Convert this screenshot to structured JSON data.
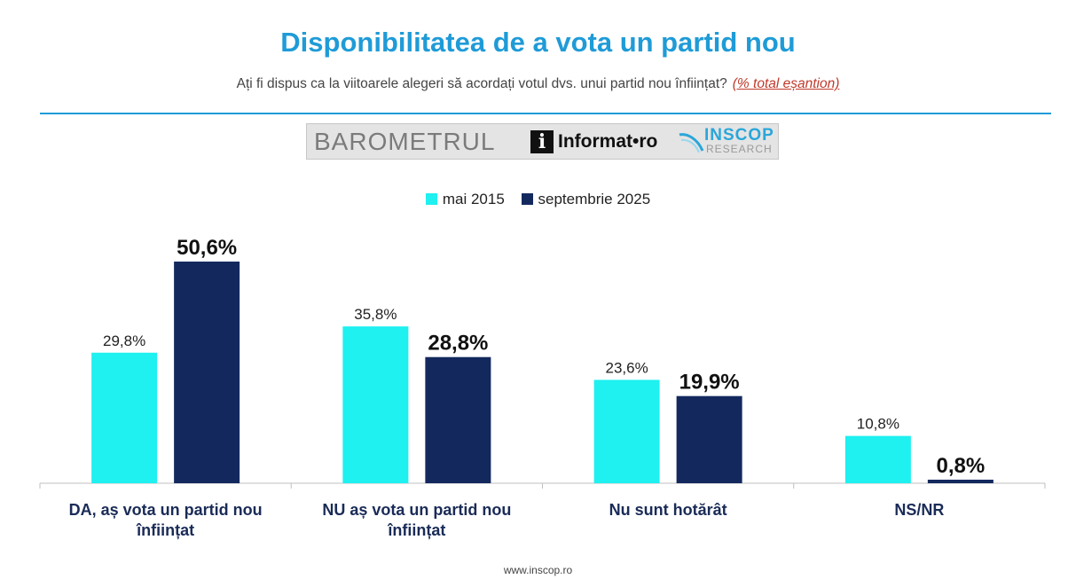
{
  "title": "Disponibilitatea de a vota un partid nou",
  "subtitle": {
    "question": "Ați fi dispus ca  la viitoarele alegeri să acordați votul dvs. unui partid nou înființat?",
    "note": "(% total eșantion)"
  },
  "logos": {
    "barometrul": "BAROMETRUL",
    "informat_icon": "i",
    "informat": "Informat•ro",
    "inscop": "INSCOP",
    "research": "RESEARCH"
  },
  "colors": {
    "accent": "#1f9bd7",
    "series_1": "#1ff0f0",
    "series_2": "#13295e",
    "note": "#c0392b"
  },
  "legend": {
    "items": [
      {
        "label": "mai 2015"
      },
      {
        "label": "septembrie 2025"
      }
    ]
  },
  "chart_data": {
    "type": "bar",
    "categories": [
      [
        "DA, aș vota un partid nou",
        "înființat"
      ],
      [
        "NU aș vota un partid nou",
        "înființat"
      ],
      [
        "Nu sunt hotărât"
      ],
      [
        "NS/NR"
      ]
    ],
    "series": [
      {
        "name": "mai 2015",
        "values": [
          29.8,
          35.8,
          23.6,
          10.8
        ],
        "labels": [
          "29,8%",
          "35,8%",
          "23,6%",
          "10,8%"
        ],
        "bold_labels": false
      },
      {
        "name": "septembrie 2025",
        "values": [
          50.6,
          28.8,
          19.9,
          0.8
        ],
        "labels": [
          "50,6%",
          "28,8%",
          "19,9%",
          "0,8%"
        ],
        "bold_labels": true
      }
    ],
    "ylim": [
      0,
      50.6
    ],
    "grid": false,
    "legend_position": "top-center"
  },
  "footer": "www.inscop.ro"
}
